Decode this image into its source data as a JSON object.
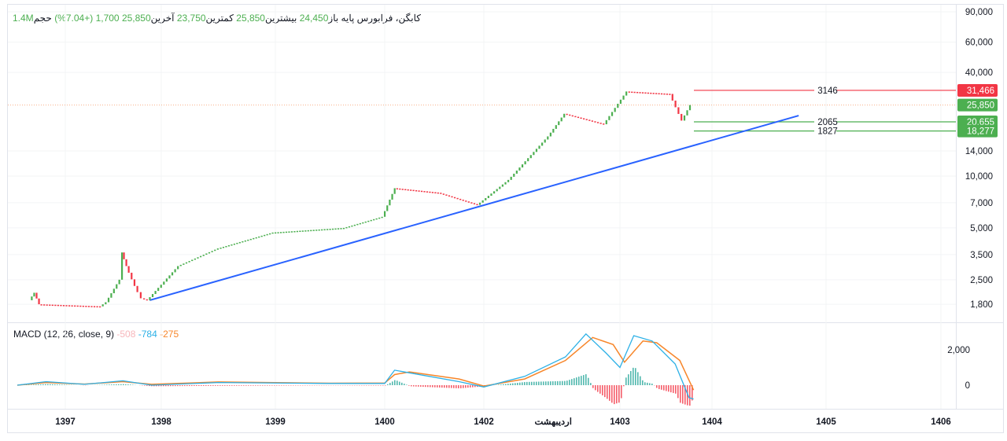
{
  "legend": {
    "title": "کابگن، فرابورس پایه",
    "open_label": "باز",
    "open": "24,450",
    "high_label": "بیشترین",
    "high": "25,850",
    "low_label": "کمترین",
    "low": "23,750",
    "close_label": "آخرین",
    "close": "25,850",
    "change": "1,700 (+7.04%)",
    "volume_label": "حجم",
    "volume": "1.4M"
  },
  "macd_legend": {
    "name": "MACD (12, 26, close, 9)",
    "hist": "-508",
    "macd": "-784",
    "signal": "-275"
  },
  "colors": {
    "up": "#4caf50",
    "down": "#f23645",
    "trend": "#2962ff",
    "macd": "#2cb0e6",
    "signal": "#f7862a"
  },
  "chart_data": {
    "type": "line",
    "title": "کابگن",
    "price_scale": "log",
    "y_ticks": [
      "90,000",
      "60,000",
      "40,000",
      "14,000",
      "10,000",
      "7,000",
      "5,000",
      "3,500",
      "2,500",
      "1,800"
    ],
    "y_tick_values": [
      90000,
      60000,
      40000,
      14000,
      10000,
      7000,
      5000,
      3500,
      2500,
      1800
    ],
    "x_ticks": [
      {
        "label": "1397",
        "t": 1397
      },
      {
        "label": "1398",
        "t": 1398
      },
      {
        "label": "1399",
        "t": 1399
      },
      {
        "label": "1400",
        "t": 1400
      },
      {
        "label": "1402",
        "t": 1402
      },
      {
        "label": "اردیبهشت",
        "t": 1402.51
      },
      {
        "label": "1403",
        "t": 1403
      },
      {
        "label": "1404",
        "t": 1404
      },
      {
        "label": "1405",
        "t": 1405
      },
      {
        "label": "1406",
        "t": 1406
      }
    ],
    "price": [
      [
        1396.65,
        1900
      ],
      [
        1396.7,
        2100
      ],
      [
        1396.75,
        1800
      ],
      [
        1397.39,
        1750
      ],
      [
        1397.45,
        1850
      ],
      [
        1397.59,
        2500
      ],
      [
        1397.61,
        3600
      ],
      [
        1397.66,
        3000
      ],
      [
        1397.75,
        2300
      ],
      [
        1397.82,
        1950
      ],
      [
        1397.88,
        1900
      ],
      [
        1398.17,
        3000
      ],
      [
        1398.52,
        3800
      ],
      [
        1399.0,
        4700
      ],
      [
        1399.65,
        5000
      ],
      [
        1400.0,
        5800
      ],
      [
        1400.25,
        8500
      ],
      [
        1401.13,
        8000
      ],
      [
        1401.92,
        6800
      ],
      [
        1402.2,
        9500
      ],
      [
        1402.49,
        17000
      ],
      [
        1402.61,
        23000
      ],
      [
        1402.9,
        20000
      ],
      [
        1403.1,
        31000
      ],
      [
        1403.57,
        30000
      ],
      [
        1403.7,
        21000
      ],
      [
        1403.79,
        25850
      ]
    ],
    "trendline": [
      [
        1397.88,
        1900
      ],
      [
        1404.76,
        22450
      ]
    ],
    "current_price": {
      "value": 25850,
      "label": "25,850"
    },
    "levels": [
      {
        "value": 31466,
        "label": "31,466",
        "diff": "3146",
        "color": "#f23645"
      },
      {
        "value": 20655,
        "label": "20,655",
        "diff": "2065",
        "color": "#4caf50"
      },
      {
        "value": 18277,
        "label": "18,277",
        "diff": "1827",
        "color": "#4caf50"
      }
    ],
    "macd_ticks": [
      {
        "label": "2,000",
        "v": 2000
      },
      {
        "label": "0",
        "v": 0
      }
    ],
    "macd": [
      [
        1396.5,
        0
      ],
      [
        1396.8,
        200
      ],
      [
        1397.2,
        50
      ],
      [
        1397.6,
        250
      ],
      [
        1397.9,
        0
      ],
      [
        1398.5,
        150
      ],
      [
        1399.5,
        100
      ],
      [
        1400.0,
        100
      ],
      [
        1400.2,
        850
      ],
      [
        1400.5,
        700
      ],
      [
        1401.5,
        200
      ],
      [
        1402.0,
        -100
      ],
      [
        1402.3,
        500
      ],
      [
        1402.6,
        1600
      ],
      [
        1402.75,
        2900
      ],
      [
        1402.9,
        1800
      ],
      [
        1403.0,
        1000
      ],
      [
        1403.15,
        2800
      ],
      [
        1403.35,
        2500
      ],
      [
        1403.6,
        1200
      ],
      [
        1403.75,
        -700
      ],
      [
        1403.8,
        -784
      ]
    ],
    "signal": [
      [
        1396.5,
        0
      ],
      [
        1396.8,
        150
      ],
      [
        1397.2,
        60
      ],
      [
        1397.6,
        200
      ],
      [
        1397.9,
        50
      ],
      [
        1398.5,
        180
      ],
      [
        1399.5,
        110
      ],
      [
        1400.0,
        120
      ],
      [
        1400.2,
        600
      ],
      [
        1400.5,
        750
      ],
      [
        1401.5,
        350
      ],
      [
        1402.0,
        -50
      ],
      [
        1402.3,
        350
      ],
      [
        1402.6,
        1400
      ],
      [
        1402.8,
        2700
      ],
      [
        1402.95,
        2300
      ],
      [
        1403.05,
        1300
      ],
      [
        1403.25,
        2500
      ],
      [
        1403.4,
        2400
      ],
      [
        1403.65,
        1400
      ],
      [
        1403.8,
        -275
      ]
    ]
  }
}
